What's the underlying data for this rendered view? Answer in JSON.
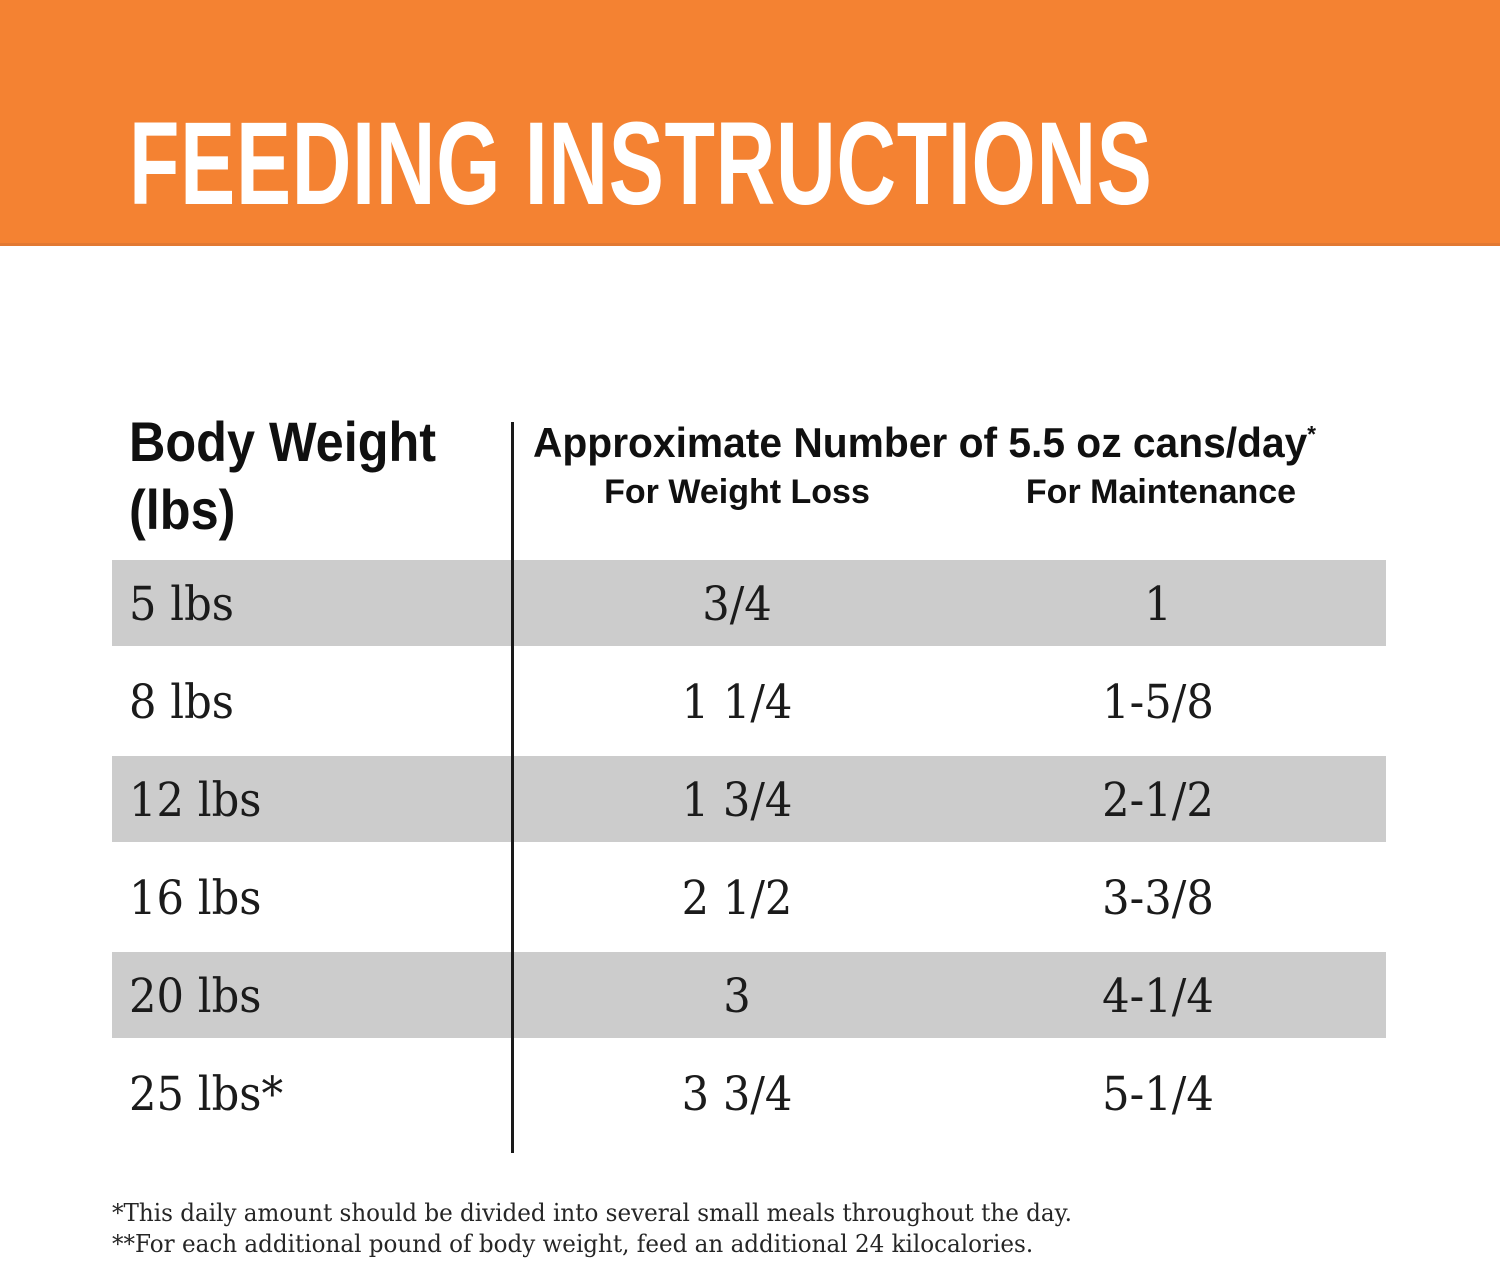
{
  "colors": {
    "accent": "#F48232",
    "accent_edge": "#E27932",
    "title_color": "#FFFFFF",
    "stripe": "#CCCCCC",
    "page_bg": "#FFFFFF"
  },
  "banner": {
    "title": "FEEDING INSTRUCTIONS"
  },
  "table": {
    "col1_header_line1": "Body Weight",
    "col1_header_line2": "(lbs)",
    "col2_header": "Approximate Number of 5.5 oz cans/day",
    "col2_header_note": "*",
    "subheaders": {
      "weight_loss": "For Weight Loss",
      "maintenance": "For Maintenance"
    },
    "rows": [
      {
        "weight": "5 lbs",
        "weight_loss": "3/4",
        "maintenance": "1"
      },
      {
        "weight": "8 lbs",
        "weight_loss": "1 1/4",
        "maintenance": "1-5/8"
      },
      {
        "weight": "12 lbs",
        "weight_loss": "1 3/4",
        "maintenance": "2-1/2"
      },
      {
        "weight": "16 lbs",
        "weight_loss": "2 1/2",
        "maintenance": "3-3/8"
      },
      {
        "weight": "20 lbs",
        "weight_loss": "3",
        "maintenance": "4-1/4"
      },
      {
        "weight": "25 lbs*",
        "weight_loss": "3 3/4",
        "maintenance": "5-1/4"
      }
    ]
  },
  "footnotes": [
    "*This daily amount should be divided into several small meals throughout the day.",
    "**For each additional pound of body weight, feed an additional 24 kilocalories."
  ]
}
